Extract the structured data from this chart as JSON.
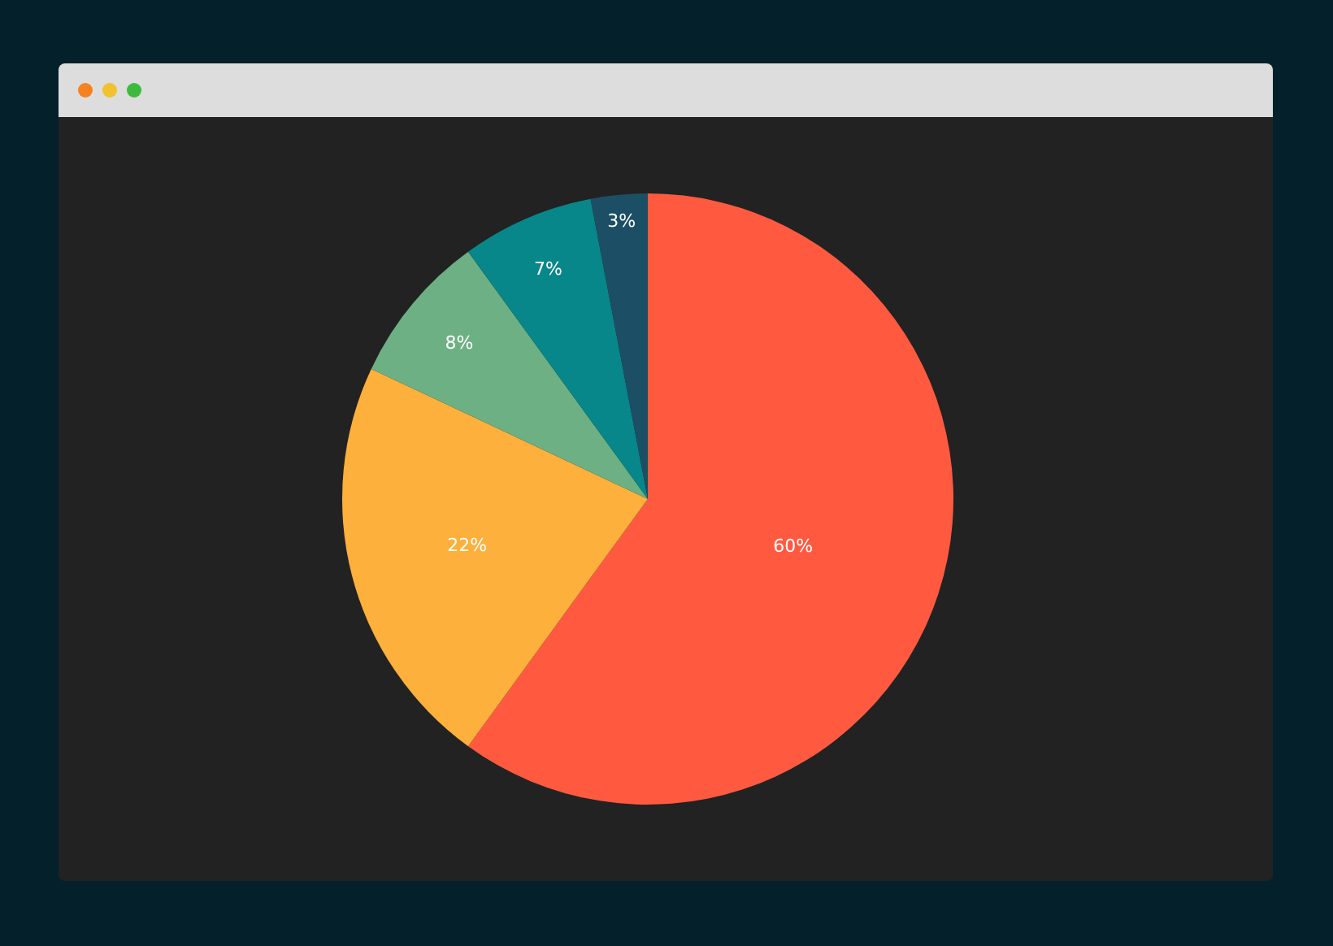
{
  "chart_data": {
    "type": "pie",
    "categories": [
      null,
      null,
      null,
      null,
      null
    ],
    "values": [
      60,
      22,
      8,
      7,
      3
    ],
    "value_labels": [
      "60%",
      "22%",
      "8%",
      "7%",
      "3%"
    ],
    "colors": [
      "#ff5a40",
      "#fdb03b",
      "#6db083",
      "#08878a",
      "#1c4f66"
    ],
    "legend": false
  }
}
